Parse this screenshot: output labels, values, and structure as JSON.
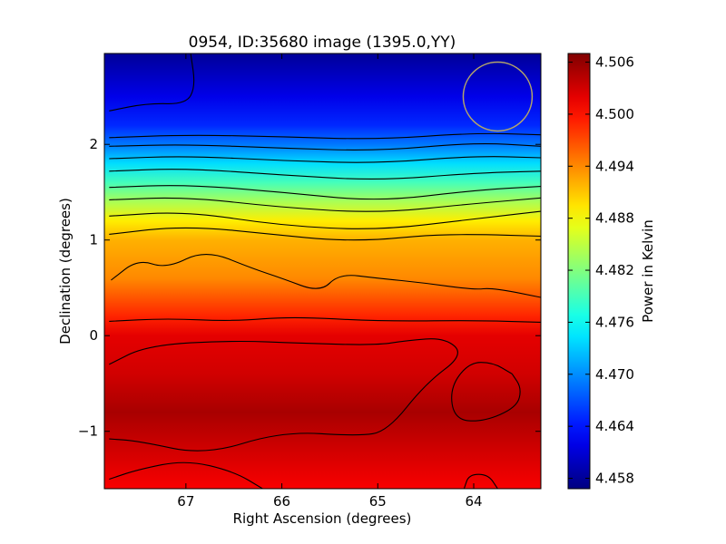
{
  "chart_data": {
    "type": "heatmap",
    "title": "0954, ID:35680 image (1395.0,YY)",
    "xlabel": "Right Ascension (degrees)",
    "ylabel": "Declination (degrees)",
    "xlim": [
      67.85,
      63.3
    ],
    "ylim": [
      -1.6,
      2.95
    ],
    "x_ticks": [
      {
        "value": 67,
        "label": "67"
      },
      {
        "value": 66,
        "label": "66"
      },
      {
        "value": 65,
        "label": "65"
      },
      {
        "value": 64,
        "label": "64"
      }
    ],
    "y_ticks": [
      {
        "value": -1,
        "label": "−1"
      },
      {
        "value": 0,
        "label": "0"
      },
      {
        "value": 1,
        "label": "1"
      },
      {
        "value": 2,
        "label": "2"
      }
    ],
    "colorbar": {
      "label": "Power in Kelvin",
      "colormap": "jet",
      "range": [
        4.4568,
        4.507
      ],
      "ticks": [
        {
          "value": 4.458,
          "label": "4.458"
        },
        {
          "value": 4.464,
          "label": "4.464"
        },
        {
          "value": 4.47,
          "label": "4.470"
        },
        {
          "value": 4.476,
          "label": "4.476"
        },
        {
          "value": 4.482,
          "label": "4.482"
        },
        {
          "value": 4.488,
          "label": "4.488"
        },
        {
          "value": 4.494,
          "label": "4.494"
        },
        {
          "value": 4.5,
          "label": "4.500"
        },
        {
          "value": 4.506,
          "label": "4.506"
        }
      ]
    },
    "field_profile": {
      "dec": [
        2.95,
        2.5,
        2.2,
        2.0,
        1.8,
        1.6,
        1.4,
        1.2,
        1.0,
        0.6,
        0.2,
        0.0,
        -0.4,
        -0.8,
        -1.2,
        -1.6
      ],
      "power": [
        4.458,
        4.462,
        4.465,
        4.469,
        4.474,
        4.479,
        4.484,
        4.489,
        4.492,
        4.494,
        4.499,
        4.502,
        4.503,
        4.505,
        4.503,
        4.501
      ]
    },
    "contour_lines": [
      {
        "level": "c1",
        "points": [
          [
            67.8,
            2.35
          ],
          [
            67.4,
            2.43
          ],
          [
            67.0,
            2.42
          ],
          [
            66.9,
            2.6
          ],
          [
            66.95,
            2.95
          ]
        ]
      },
      {
        "level": "c2",
        "points": [
          [
            67.8,
            2.07
          ],
          [
            67.0,
            2.1
          ],
          [
            66.0,
            2.08
          ],
          [
            65.0,
            2.05
          ],
          [
            64.0,
            2.12
          ],
          [
            63.3,
            2.1
          ]
        ]
      },
      {
        "level": "c3",
        "points": [
          [
            67.8,
            1.98
          ],
          [
            67.0,
            2.0
          ],
          [
            66.0,
            1.96
          ],
          [
            65.0,
            1.93
          ],
          [
            64.0,
            2.02
          ],
          [
            63.3,
            1.98
          ]
        ]
      },
      {
        "level": "c4",
        "points": [
          [
            67.8,
            1.85
          ],
          [
            67.0,
            1.88
          ],
          [
            66.0,
            1.83
          ],
          [
            65.0,
            1.8
          ],
          [
            64.0,
            1.88
          ],
          [
            63.3,
            1.86
          ]
        ]
      },
      {
        "level": "c5",
        "points": [
          [
            67.8,
            1.72
          ],
          [
            67.0,
            1.75
          ],
          [
            66.0,
            1.68
          ],
          [
            65.0,
            1.62
          ],
          [
            64.0,
            1.7
          ],
          [
            63.3,
            1.72
          ]
        ]
      },
      {
        "level": "c6",
        "points": [
          [
            67.8,
            1.55
          ],
          [
            67.0,
            1.58
          ],
          [
            66.0,
            1.5
          ],
          [
            65.0,
            1.4
          ],
          [
            64.0,
            1.52
          ],
          [
            63.3,
            1.56
          ]
        ]
      },
      {
        "level": "c7",
        "points": [
          [
            67.8,
            1.42
          ],
          [
            67.0,
            1.45
          ],
          [
            66.0,
            1.34
          ],
          [
            65.0,
            1.28
          ],
          [
            64.0,
            1.38
          ],
          [
            63.3,
            1.44
          ]
        ]
      },
      {
        "level": "c8",
        "points": [
          [
            67.8,
            1.25
          ],
          [
            67.0,
            1.3
          ],
          [
            66.0,
            1.15
          ],
          [
            65.0,
            1.1
          ],
          [
            64.0,
            1.22
          ],
          [
            63.3,
            1.3
          ]
        ]
      },
      {
        "level": "c9",
        "points": [
          [
            67.8,
            1.06
          ],
          [
            67.0,
            1.15
          ],
          [
            66.0,
            1.05
          ],
          [
            65.5,
            1.0
          ],
          [
            65.0,
            1.0
          ],
          [
            64.5,
            1.05
          ],
          [
            64.0,
            1.06
          ],
          [
            63.3,
            1.04
          ]
        ]
      },
      {
        "level": "c10",
        "points": [
          [
            67.78,
            0.58
          ],
          [
            67.5,
            0.8
          ],
          [
            67.2,
            0.7
          ],
          [
            66.8,
            0.9
          ],
          [
            66.3,
            0.7
          ],
          [
            66.0,
            0.6
          ],
          [
            65.6,
            0.45
          ],
          [
            65.4,
            0.65
          ],
          [
            65.0,
            0.6
          ],
          [
            64.5,
            0.55
          ],
          [
            64.0,
            0.48
          ],
          [
            63.8,
            0.5
          ],
          [
            63.3,
            0.4
          ]
        ]
      },
      {
        "level": "c11",
        "points": [
          [
            67.8,
            0.15
          ],
          [
            67.2,
            0.18
          ],
          [
            66.5,
            0.15
          ],
          [
            65.9,
            0.2
          ],
          [
            65.0,
            0.15
          ],
          [
            64.0,
            0.16
          ],
          [
            63.3,
            0.14
          ]
        ]
      },
      {
        "level": "c12",
        "points": [
          [
            67.8,
            -0.3
          ],
          [
            67.4,
            -0.1
          ],
          [
            66.5,
            -0.05
          ],
          [
            65.8,
            -0.08
          ],
          [
            65.0,
            -0.1
          ],
          [
            64.7,
            -0.05
          ],
          [
            64.3,
            -0.02
          ],
          [
            64.1,
            -0.2
          ],
          [
            64.5,
            -0.5
          ],
          [
            64.9,
            -1.0
          ],
          [
            65.2,
            -1.05
          ],
          [
            66.0,
            -1.0
          ],
          [
            66.8,
            -1.25
          ],
          [
            67.5,
            -1.1
          ],
          [
            67.8,
            -1.08
          ]
        ]
      },
      {
        "level": "c13",
        "points": [
          [
            63.6,
            -0.4
          ],
          [
            63.8,
            -0.28
          ],
          [
            64.05,
            -0.28
          ],
          [
            64.25,
            -0.55
          ],
          [
            64.2,
            -0.88
          ],
          [
            63.9,
            -0.9
          ],
          [
            63.55,
            -0.75
          ],
          [
            63.5,
            -0.55
          ],
          [
            63.6,
            -0.4
          ]
        ]
      },
      {
        "level": "c14",
        "points": [
          [
            67.8,
            -1.5
          ],
          [
            67.5,
            -1.4
          ],
          [
            67.0,
            -1.3
          ],
          [
            66.5,
            -1.42
          ],
          [
            66.2,
            -1.6
          ]
        ]
      },
      {
        "level": "c15",
        "points": [
          [
            64.1,
            -1.6
          ],
          [
            64.05,
            -1.45
          ],
          [
            63.85,
            -1.45
          ],
          [
            63.75,
            -1.6
          ]
        ]
      }
    ],
    "beam_marker": {
      "ra": 63.75,
      "dec": 2.5,
      "radius_deg": 0.36,
      "color": "#b4a56a"
    }
  }
}
